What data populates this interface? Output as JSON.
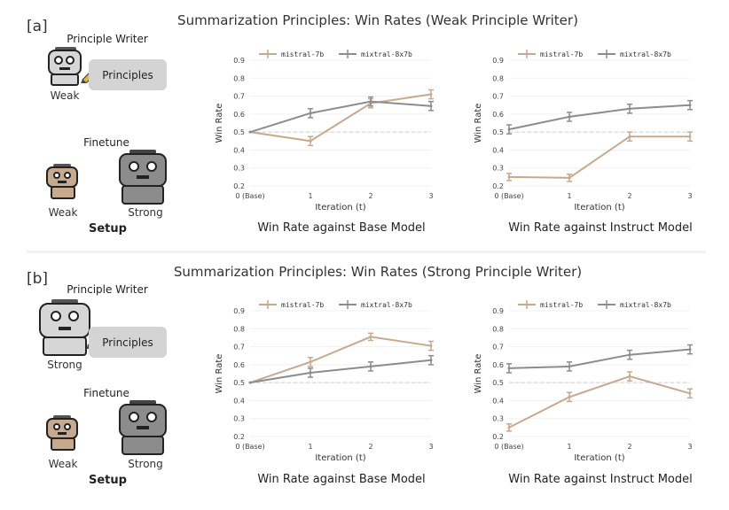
{
  "colors": {
    "weak": "#c7a98e",
    "strong": "#8c8c8c",
    "ref": "#cfcfcf"
  },
  "panels": [
    {
      "tag": "[a]",
      "title": "Summarization Principles: Win Rates (Weak Principle Writer)",
      "setup": {
        "principle_writer_label": "Principle Writer",
        "writer_caption": "Weak",
        "principles_label": "Principles",
        "finetune_label": "Finetune",
        "weak_caption": "Weak",
        "strong_caption": "Strong",
        "footer": "Setup"
      }
    },
    {
      "tag": "[b]",
      "title": "Summarization Principles: Win Rates (Strong Principle Writer)",
      "setup": {
        "principle_writer_label": "Principle Writer",
        "writer_caption": "Strong",
        "principles_label": "Principles",
        "finetune_label": "Finetune",
        "weak_caption": "Weak",
        "strong_caption": "Strong",
        "footer": "Setup"
      }
    }
  ],
  "chart_data": [
    {
      "type": "line",
      "panel": "a",
      "caption": "Win Rate against Base Model",
      "xlabel": "Iteration (t)",
      "ylabel": "Win Rate",
      "x": [
        "0 (Base)",
        "1",
        "2",
        "3"
      ],
      "ylim": [
        0.2,
        0.9
      ],
      "yticks": [
        "0.2",
        "0.3",
        "0.4",
        "0.5",
        "0.6",
        "0.7",
        "0.8",
        "0.9"
      ],
      "reference_line": 0.5,
      "series": [
        {
          "name": "mistral-7b",
          "values": [
            0.5,
            0.45,
            0.66,
            0.71
          ],
          "errors": [
            0,
            0.025,
            0.025,
            0.025
          ]
        },
        {
          "name": "mixtral-8x7b",
          "values": [
            0.5,
            0.605,
            0.67,
            0.645
          ],
          "errors": [
            0,
            0.025,
            0.025,
            0.025
          ]
        }
      ]
    },
    {
      "type": "line",
      "panel": "a",
      "caption": "Win Rate against Instruct Model",
      "xlabel": "Iteration (t)",
      "ylabel": "Win Rate",
      "x": [
        "0 (Base)",
        "1",
        "2",
        "3"
      ],
      "ylim": [
        0.2,
        0.9
      ],
      "yticks": [
        "0.2",
        "0.3",
        "0.4",
        "0.5",
        "0.6",
        "0.7",
        "0.8",
        "0.9"
      ],
      "reference_line": 0.5,
      "series": [
        {
          "name": "mistral-7b",
          "values": [
            0.25,
            0.245,
            0.475,
            0.475
          ],
          "errors": [
            0.02,
            0.02,
            0.025,
            0.025
          ]
        },
        {
          "name": "mixtral-8x7b",
          "values": [
            0.515,
            0.585,
            0.63,
            0.65
          ],
          "errors": [
            0.025,
            0.025,
            0.025,
            0.025
          ]
        }
      ]
    },
    {
      "type": "line",
      "panel": "b",
      "caption": "Win Rate against Base Model",
      "xlabel": "Iteration (t)",
      "ylabel": "Win Rate",
      "x": [
        "0 (Base)",
        "1",
        "2",
        "3"
      ],
      "ylim": [
        0.2,
        0.9
      ],
      "yticks": [
        "0.2",
        "0.3",
        "0.4",
        "0.5",
        "0.6",
        "0.7",
        "0.8",
        "0.9"
      ],
      "reference_line": 0.5,
      "series": [
        {
          "name": "mistral-7b",
          "values": [
            0.5,
            0.615,
            0.755,
            0.705
          ],
          "errors": [
            0,
            0.025,
            0.02,
            0.025
          ]
        },
        {
          "name": "mixtral-8x7b",
          "values": [
            0.5,
            0.555,
            0.59,
            0.625
          ],
          "errors": [
            0,
            0.025,
            0.025,
            0.025
          ]
        }
      ]
    },
    {
      "type": "line",
      "panel": "b",
      "caption": "Win Rate against Instruct Model",
      "xlabel": "Iteration (t)",
      "ylabel": "Win Rate",
      "x": [
        "0 (Base)",
        "1",
        "2",
        "3"
      ],
      "ylim": [
        0.2,
        0.9
      ],
      "yticks": [
        "0.2",
        "0.3",
        "0.4",
        "0.5",
        "0.6",
        "0.7",
        "0.8",
        "0.9"
      ],
      "reference_line": 0.5,
      "series": [
        {
          "name": "mistral-7b",
          "values": [
            0.25,
            0.42,
            0.535,
            0.44
          ],
          "errors": [
            0.02,
            0.025,
            0.025,
            0.025
          ]
        },
        {
          "name": "mixtral-8x7b",
          "values": [
            0.58,
            0.59,
            0.655,
            0.685
          ],
          "errors": [
            0.025,
            0.025,
            0.025,
            0.025
          ]
        }
      ]
    }
  ]
}
